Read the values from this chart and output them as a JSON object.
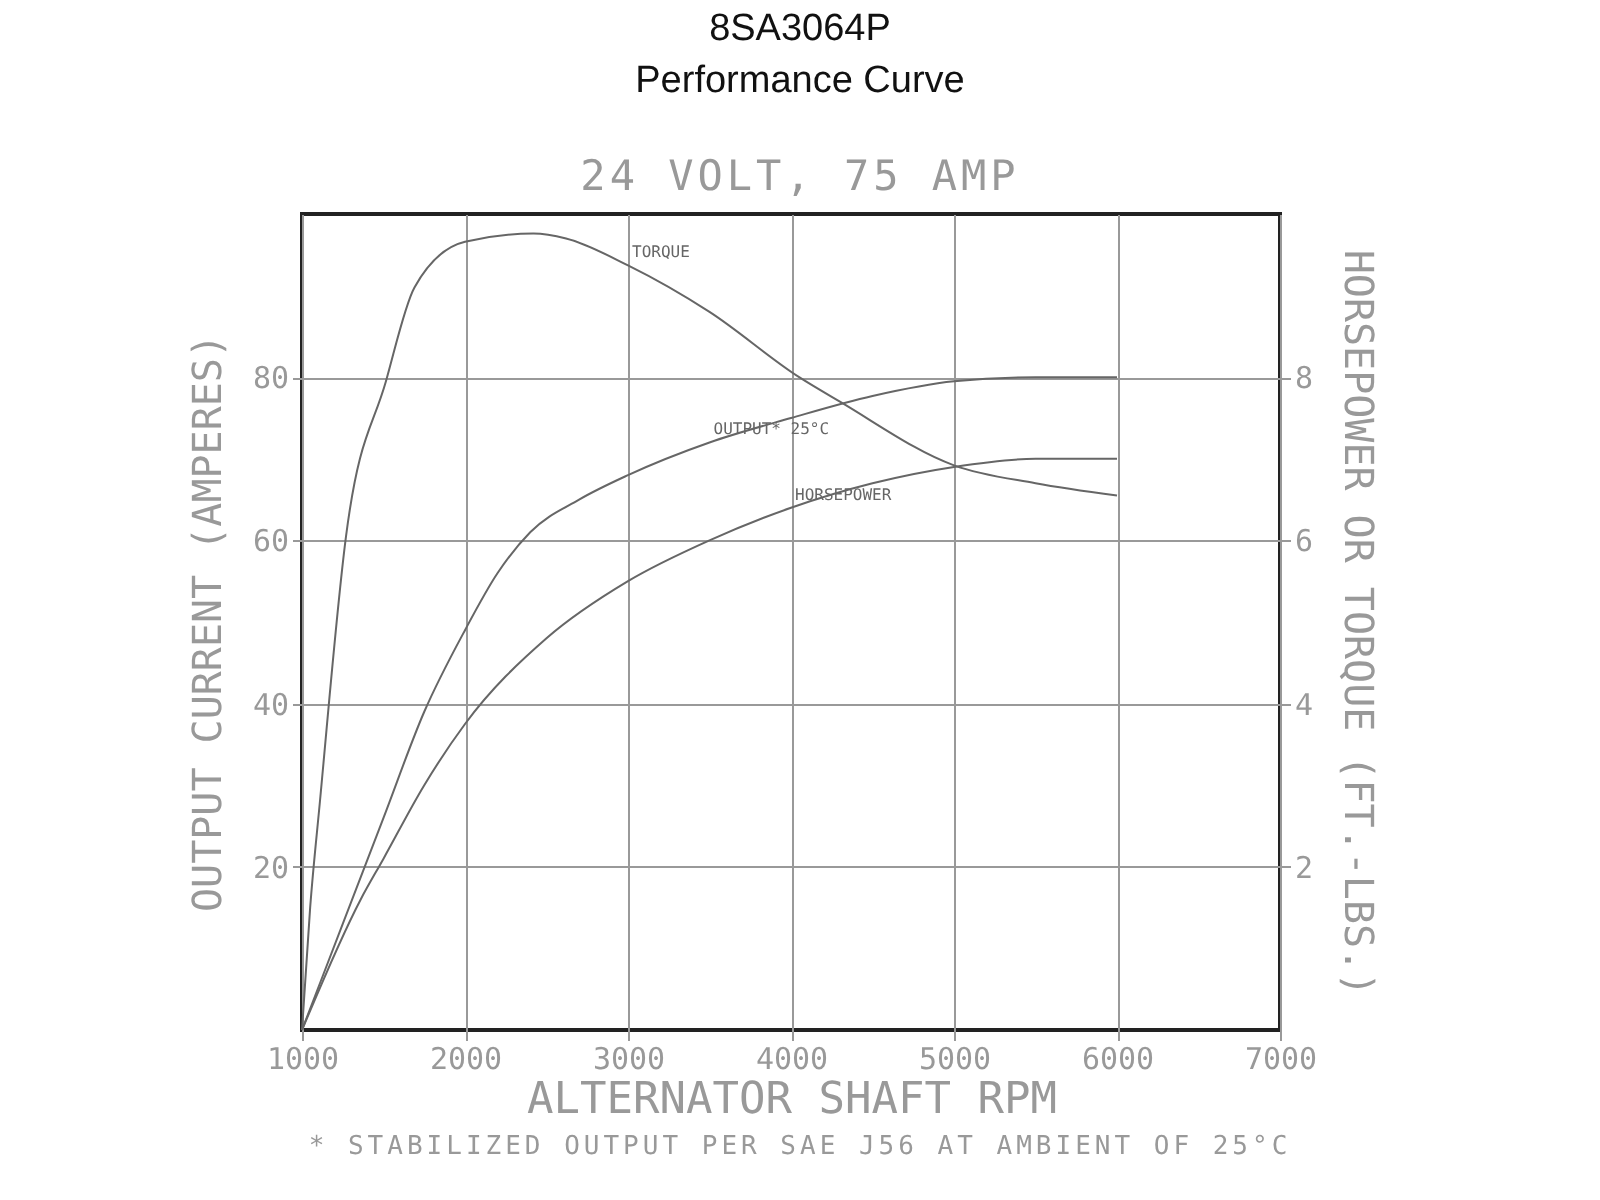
{
  "chart_data": {
    "type": "line",
    "title": "8SA3064P",
    "subtitle": "Performance Curve",
    "xlabel": "ALTERNATOR SHAFT RPM",
    "ylabel": "OUTPUT CURRENT (AMPERES)",
    "y2label": "HORSEPOWER OR TORQUE (FT.-LBS.)",
    "annotations": [
      "24 VOLT, 75 AMP",
      "* STABILIZED OUTPUT PER SAE J56 AT AMBIENT OF 25°C"
    ],
    "xlim": [
      1000,
      7000
    ],
    "xticks": [
      1000,
      2000,
      3000,
      4000,
      5000,
      6000,
      7000
    ],
    "ylim": [
      0,
      100
    ],
    "yticks": [
      20,
      40,
      60,
      80
    ],
    "y2lim": [
      0,
      10
    ],
    "y2ticks": [
      2,
      4,
      6,
      8
    ],
    "grid": true,
    "marker": "none",
    "line_style": "solid",
    "series": [
      {
        "name": "OUTPUT* 25°C",
        "color": "#666666",
        "x": [
          1000,
          1250,
          1500,
          1750,
          2000,
          2200,
          2400,
          2700,
          3000,
          3500,
          4000,
          4500,
          5000,
          5500,
          6000
        ],
        "values": [
          0,
          13,
          26,
          39,
          49,
          56,
          61,
          65,
          68,
          72,
          75,
          77.7,
          79.5,
          80,
          80
        ]
      },
      {
        "name": "HORSEPOWER",
        "color": "#666666",
        "axis": "y2",
        "x": [
          1000,
          1360,
          1500,
          1750,
          2000,
          2500,
          3000,
          3500,
          4000,
          4500,
          5000,
          5500,
          6000
        ],
        "values": [
          0,
          1.6,
          2.1,
          3.0,
          3.75,
          4.8,
          5.5,
          6.0,
          6.4,
          6.7,
          6.9,
          7.0,
          7.0
        ]
      },
      {
        "name": "TORQUE",
        "color": "#666666",
        "axis": "y2",
        "x": [
          1000,
          1050,
          1110,
          1270,
          1515,
          1690,
          2000,
          2420,
          2620,
          3000,
          3500,
          4050,
          4300,
          5000,
          5500,
          6000
        ],
        "values": [
          0,
          1.5,
          2.8,
          6.05,
          7.95,
          9.1,
          9.66,
          9.76,
          9.7,
          9.37,
          8.8,
          8.0,
          7.7,
          6.92,
          6.7,
          6.55
        ]
      }
    ]
  }
}
